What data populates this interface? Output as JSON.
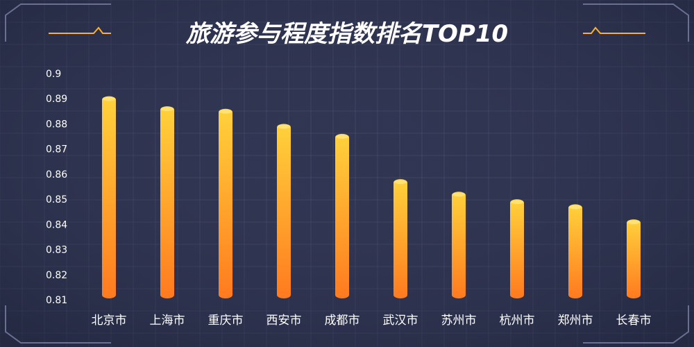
{
  "colors": {
    "background": "#303552",
    "grid": "#4a5071",
    "frame": "#6a7092",
    "accent": "#ffb02a",
    "title": "#ffffff",
    "bar_top": "#ffd23c",
    "bar_bottom": "#ff7a1f",
    "text": "#ffffff"
  },
  "chart_data": {
    "type": "bar",
    "title": "旅游参与程度指数排名TOP10",
    "categories": [
      "北京市",
      "上海市",
      "重庆市",
      "西安市",
      "成都市",
      "武汉市",
      "苏州市",
      "杭州市",
      "郑州市",
      "长春市"
    ],
    "values": [
      0.891,
      0.887,
      0.886,
      0.88,
      0.876,
      0.858,
      0.853,
      0.85,
      0.848,
      0.842
    ],
    "y_ticks": [
      "0.9",
      "0.89",
      "0.88",
      "0.87",
      "0.86",
      "0.85",
      "0.84",
      "0.83",
      "0.82",
      "0.81"
    ],
    "ylim": [
      0.81,
      0.9
    ],
    "xlabel": "",
    "ylabel": "",
    "grid": true,
    "legend": "none"
  }
}
